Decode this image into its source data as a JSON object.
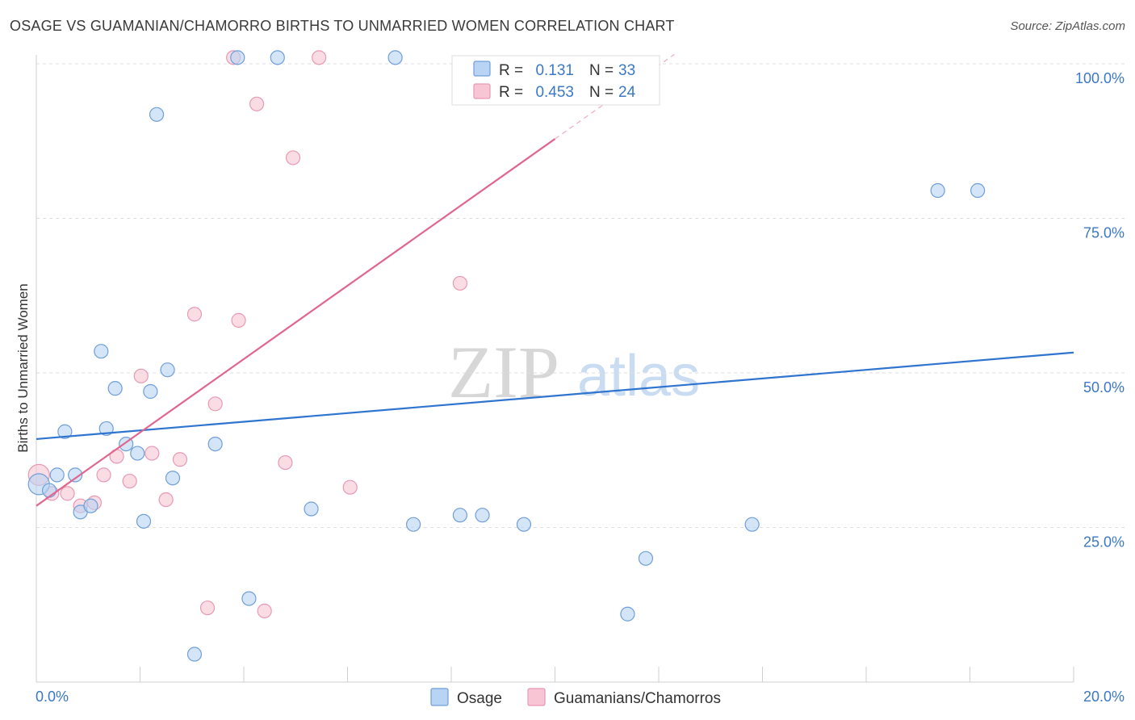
{
  "title": "OSAGE VS GUAMANIAN/CHAMORRO BIRTHS TO UNMARRIED WOMEN CORRELATION CHART",
  "source": "Source: ZipAtlas.com",
  "watermark": {
    "zip": "ZIP",
    "atlas": "atlas"
  },
  "colors": {
    "osage_fill": "#b8d3f3",
    "osage_stroke": "#6f9fd8",
    "osage_line": "#2f74d0",
    "guam_fill": "#f7c5d4",
    "guam_stroke": "#e79ab3",
    "guam_line": "#e0668f",
    "value_text": "#3b78c7"
  },
  "legend": {
    "r_label": "R =",
    "n_label": "N =",
    "rows": [
      {
        "series": "osage",
        "r": "0.131",
        "n": "33"
      },
      {
        "series": "guam",
        "r": "0.453",
        "n": "24"
      }
    ]
  },
  "chart_data": {
    "type": "scatter",
    "title": "OSAGE VS GUAMANIAN/CHAMORRO BIRTHS TO UNMARRIED WOMEN CORRELATION CHART",
    "xlabel": "",
    "ylabel": "Births to Unmarried Women",
    "xlim": [
      0,
      20
    ],
    "ylim": [
      0,
      100
    ],
    "x_tick_labels": [
      "0.0%",
      "20.0%"
    ],
    "y_tick_labels": [
      "25.0%",
      "50.0%",
      "75.0%",
      "100.0%"
    ],
    "y_ticks": [
      25,
      50,
      75,
      100
    ],
    "legend_placement": "top-center",
    "series": [
      {
        "name": "Osage",
        "key": "osage",
        "r": 0.131,
        "n": 33,
        "trend": {
          "x0": 0,
          "y0": 39.3,
          "x1": 20,
          "y1": 53.3,
          "dashed_from": null
        },
        "points": [
          {
            "x": 0.05,
            "y": 32.0
          },
          {
            "x": 0.25,
            "y": 31.0
          },
          {
            "x": 0.4,
            "y": 33.5
          },
          {
            "x": 0.55,
            "y": 40.5
          },
          {
            "x": 0.75,
            "y": 33.5
          },
          {
            "x": 0.85,
            "y": 27.5
          },
          {
            "x": 1.05,
            "y": 28.5
          },
          {
            "x": 1.25,
            "y": 53.5
          },
          {
            "x": 1.35,
            "y": 41.0
          },
          {
            "x": 1.52,
            "y": 47.5
          },
          {
            "x": 1.73,
            "y": 38.5
          },
          {
            "x": 1.95,
            "y": 37.0
          },
          {
            "x": 2.07,
            "y": 26.0
          },
          {
            "x": 2.2,
            "y": 47.0
          },
          {
            "x": 2.32,
            "y": 91.8
          },
          {
            "x": 2.53,
            "y": 50.5
          },
          {
            "x": 2.63,
            "y": 33.0
          },
          {
            "x": 3.05,
            "y": 4.5
          },
          {
            "x": 3.45,
            "y": 38.5
          },
          {
            "x": 3.88,
            "y": 101.0
          },
          {
            "x": 4.1,
            "y": 13.5
          },
          {
            "x": 4.65,
            "y": 101.0
          },
          {
            "x": 5.3,
            "y": 28.0
          },
          {
            "x": 6.92,
            "y": 101.0
          },
          {
            "x": 7.27,
            "y": 25.5
          },
          {
            "x": 8.17,
            "y": 27.0
          },
          {
            "x": 8.6,
            "y": 27.0
          },
          {
            "x": 9.4,
            "y": 25.5
          },
          {
            "x": 11.4,
            "y": 11.0
          },
          {
            "x": 11.75,
            "y": 20.0
          },
          {
            "x": 13.8,
            "y": 25.5
          },
          {
            "x": 17.38,
            "y": 79.5
          },
          {
            "x": 18.15,
            "y": 79.5
          }
        ]
      },
      {
        "name": "Guamanians/Chamorros",
        "key": "guam",
        "r": 0.453,
        "n": 24,
        "trend": {
          "x0": 0,
          "y0": 28.5,
          "x1": 12.3,
          "y1": 101.5,
          "dashed_from": 10.0
        },
        "points": [
          {
            "x": 0.05,
            "y": 33.5
          },
          {
            "x": 0.3,
            "y": 30.5
          },
          {
            "x": 0.6,
            "y": 30.5
          },
          {
            "x": 0.85,
            "y": 28.5
          },
          {
            "x": 1.12,
            "y": 29.0
          },
          {
            "x": 1.3,
            "y": 33.5
          },
          {
            "x": 1.55,
            "y": 36.5
          },
          {
            "x": 1.8,
            "y": 32.5
          },
          {
            "x": 2.02,
            "y": 49.5
          },
          {
            "x": 2.23,
            "y": 37.0
          },
          {
            "x": 2.5,
            "y": 29.5
          },
          {
            "x": 2.77,
            "y": 36.0
          },
          {
            "x": 3.05,
            "y": 59.5
          },
          {
            "x": 3.3,
            "y": 12.0
          },
          {
            "x": 3.45,
            "y": 45.0
          },
          {
            "x": 3.8,
            "y": 101.0
          },
          {
            "x": 3.9,
            "y": 58.5
          },
          {
            "x": 4.25,
            "y": 93.5
          },
          {
            "x": 4.4,
            "y": 11.5
          },
          {
            "x": 4.8,
            "y": 35.5
          },
          {
            "x": 4.95,
            "y": 84.8
          },
          {
            "x": 5.45,
            "y": 101.0
          },
          {
            "x": 6.05,
            "y": 31.5
          },
          {
            "x": 8.17,
            "y": 64.5
          }
        ]
      }
    ]
  },
  "bottom_legend": [
    {
      "series": "osage",
      "label": "Osage"
    },
    {
      "series": "guam",
      "label": "Guamanians/Chamorros"
    }
  ]
}
